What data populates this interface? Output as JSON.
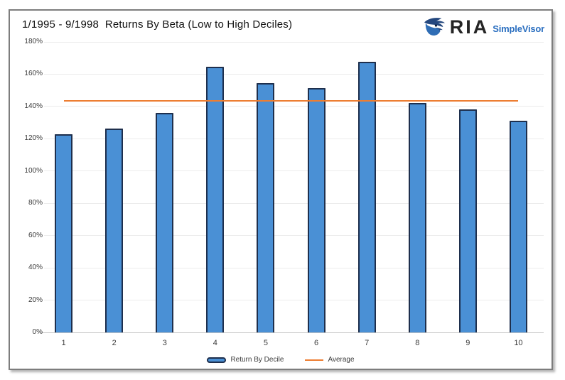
{
  "header": {
    "title": "1/1995 - 9/1998  Returns By Beta (Low to High Deciles)",
    "brand_primary": "RIA",
    "brand_secondary": "SimpleVisor"
  },
  "chart_data": {
    "type": "bar",
    "title": "1/1995 - 9/1998  Returns By Beta (Low to High Deciles)",
    "categories": [
      "1",
      "2",
      "3",
      "4",
      "5",
      "6",
      "7",
      "8",
      "9",
      "10"
    ],
    "series": [
      {
        "name": "Return By Decile",
        "values": [
          123,
          126.5,
          136,
          164.5,
          154.5,
          151.5,
          167.5,
          142,
          138,
          131
        ]
      }
    ],
    "average_line": {
      "name": "Average",
      "value": 143.5
    },
    "xlabel": "",
    "ylabel": "",
    "ylim": [
      0,
      180
    ],
    "ytick_step": 20,
    "ytick_format": "percent",
    "grid": true,
    "legend_position": "bottom"
  },
  "legend": {
    "bar_label": "Return By Decile",
    "line_label": "Average"
  },
  "colors": {
    "bar_fill": "#4a90d5",
    "bar_border": "#1e2f4d",
    "average_line": "#ed7d31",
    "gridline": "#ececec",
    "axis_line": "#c3c3c3",
    "text": "#3a3a3a",
    "brand_dark": "#252525",
    "brand_blue": "#2b6fc0",
    "eagle_dark": "#24477e",
    "eagle_mid": "#2f6db5"
  }
}
